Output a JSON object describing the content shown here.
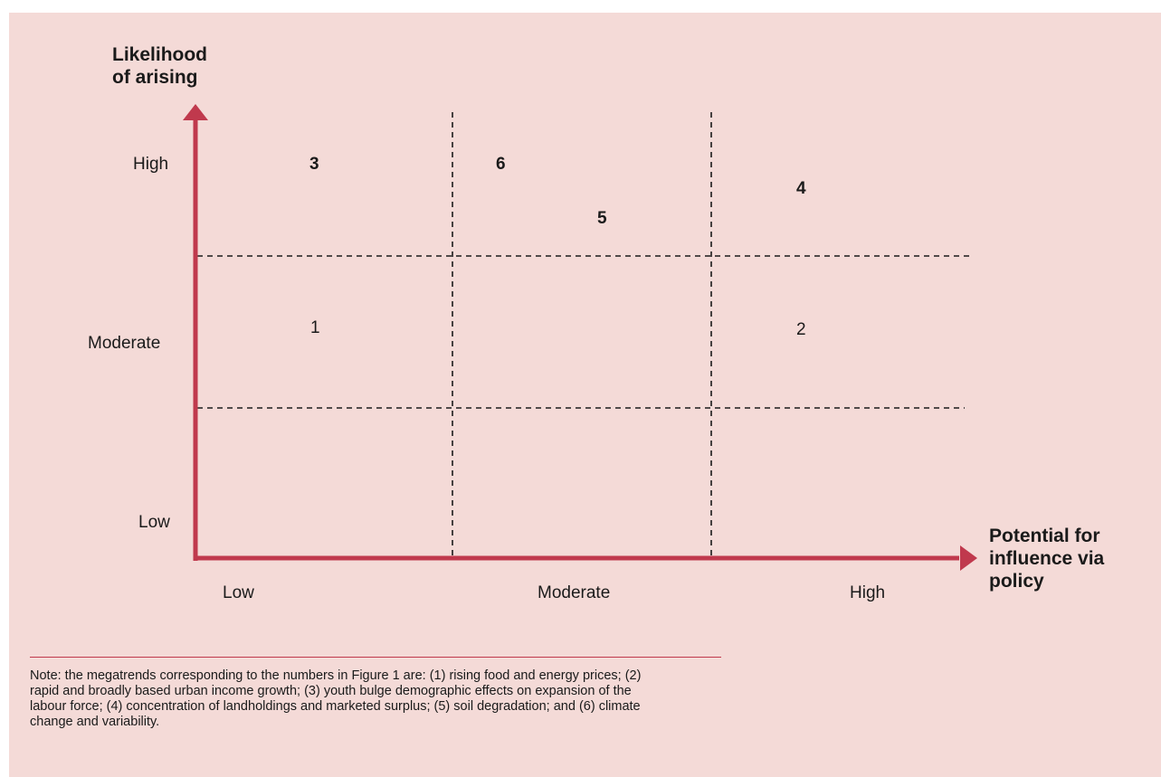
{
  "y_axis": {
    "title_line1": "Likelihood",
    "title_line2": "of arising",
    "ticks": [
      "High",
      "Moderate",
      "Low"
    ]
  },
  "x_axis": {
    "title_line1": "Potential for",
    "title_line2": "influence via",
    "title_line3": "policy",
    "ticks": [
      "Low",
      "Moderate",
      "High"
    ]
  },
  "markers": [
    {
      "label": "3",
      "bold": true
    },
    {
      "label": "6",
      "bold": true
    },
    {
      "label": "5",
      "bold": true
    },
    {
      "label": "4",
      "bold": true
    },
    {
      "label": "1",
      "bold": false
    },
    {
      "label": "2",
      "bold": false
    }
  ],
  "colors": {
    "axis": "#c0394d",
    "background": "#f4dad7",
    "text": "#1a1a1a"
  },
  "note": "Note: the megatrends corresponding to the numbers in Figure 1 are: (1) rising food and energy prices; (2) rapid and broadly based urban income growth; (3) youth bulge demographic effects on expansion of the labour force; (4) concentration of landholdings and marketed surplus; (5) soil degradation; and (6) climate change and variability."
}
